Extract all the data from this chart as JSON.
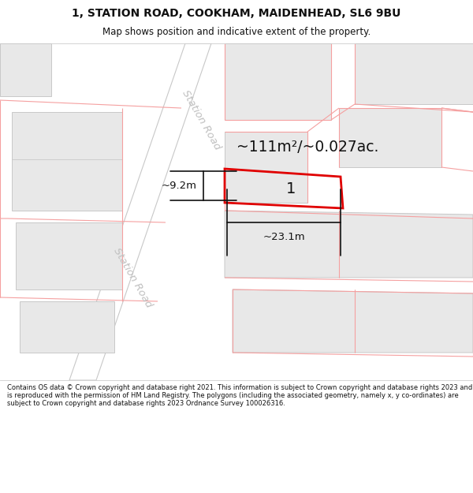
{
  "title_line1": "1, STATION ROAD, COOKHAM, MAIDENHEAD, SL6 9BU",
  "title_line2": "Map shows position and indicative extent of the property.",
  "footer": "Contains OS data © Crown copyright and database right 2021. This information is subject to Crown copyright and database rights 2023 and is reproduced with the permission of HM Land Registry. The polygons (including the associated geometry, namely x, y co-ordinates) are subject to Crown copyright and database rights 2023 Ordnance Survey 100026316.",
  "area_label": "~111m²/~0.027ac.",
  "width_label": "~23.1m",
  "height_label": "~9.2m",
  "plot_number": "1",
  "bg_color": "#ffffff",
  "map_bg": "#ffffff",
  "building_fill": "#e8e8e8",
  "building_edge": "#c8c8c8",
  "road_fill": "#ffffff",
  "road_edge": "#c8c8c8",
  "highlight_edge": "#e00000",
  "pink": "#f5a0a0",
  "road_label_color": "#c0c0c0",
  "dim_line_color": "#111111",
  "title_color": "#111111",
  "footer_color": "#111111",
  "area_label_color": "#111111",
  "plot_num_color": "#111111",
  "title_fontsize": 10.0,
  "subtitle_fontsize": 8.5,
  "footer_fontsize": 6.0,
  "area_fontsize": 13.5,
  "plot_num_fontsize": 14,
  "road_label_fontsize": 9.5,
  "dim_fontsize": 9.5
}
